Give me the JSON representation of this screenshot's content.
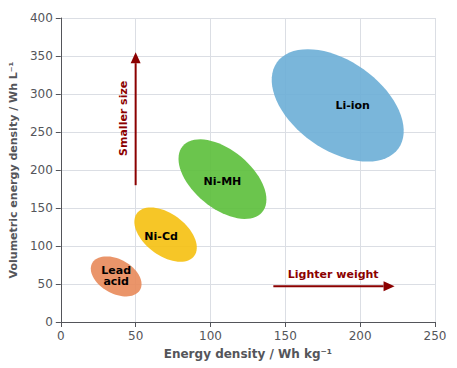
{
  "chart_data": {
    "type": "ellipse",
    "xlabel": "Energy density / Wh kg⁻¹",
    "ylabel": "Volumetric energy density / Wh L⁻¹",
    "xlim": [
      0,
      250
    ],
    "ylim": [
      0,
      400
    ],
    "xticks": [
      0,
      50,
      100,
      150,
      200,
      250
    ],
    "yticks": [
      0,
      50,
      100,
      150,
      200,
      250,
      300,
      350,
      400
    ],
    "grid": true,
    "series": [
      {
        "name": "Lead\nacid",
        "color": "#E8895A",
        "cx": 37,
        "cy": 60,
        "width": 30,
        "height": 55,
        "angle": 20,
        "label_x": 37,
        "label_y": 60
      },
      {
        "name": "Ni-Cd",
        "color": "#F5C010",
        "cx": 70,
        "cy": 115,
        "width": 35,
        "height": 75,
        "angle": 20,
        "label_x": 67,
        "label_y": 112
      },
      {
        "name": "Ni-MH",
        "color": "#5BBF3A",
        "cx": 108,
        "cy": 188,
        "width": 48,
        "height": 110,
        "angle": 20,
        "label_x": 108,
        "label_y": 185
      },
      {
        "name": "Li-ion",
        "color": "#6BAED6",
        "cx": 185,
        "cy": 285,
        "width": 75,
        "height": 155,
        "angle": 20,
        "label_x": 195,
        "label_y": 285
      }
    ],
    "annotations": [
      {
        "text": "Smaller size",
        "x": [
          50,
          50
        ],
        "y": [
          180,
          355
        ],
        "label_x": 42,
        "label_y": 268,
        "color": "#8B0000"
      },
      {
        "text": "Lighter weight",
        "x": [
          142,
          223
        ],
        "y": [
          47,
          47
        ],
        "label_x": 182,
        "label_y": 63,
        "color": "#8B0000"
      }
    ]
  }
}
